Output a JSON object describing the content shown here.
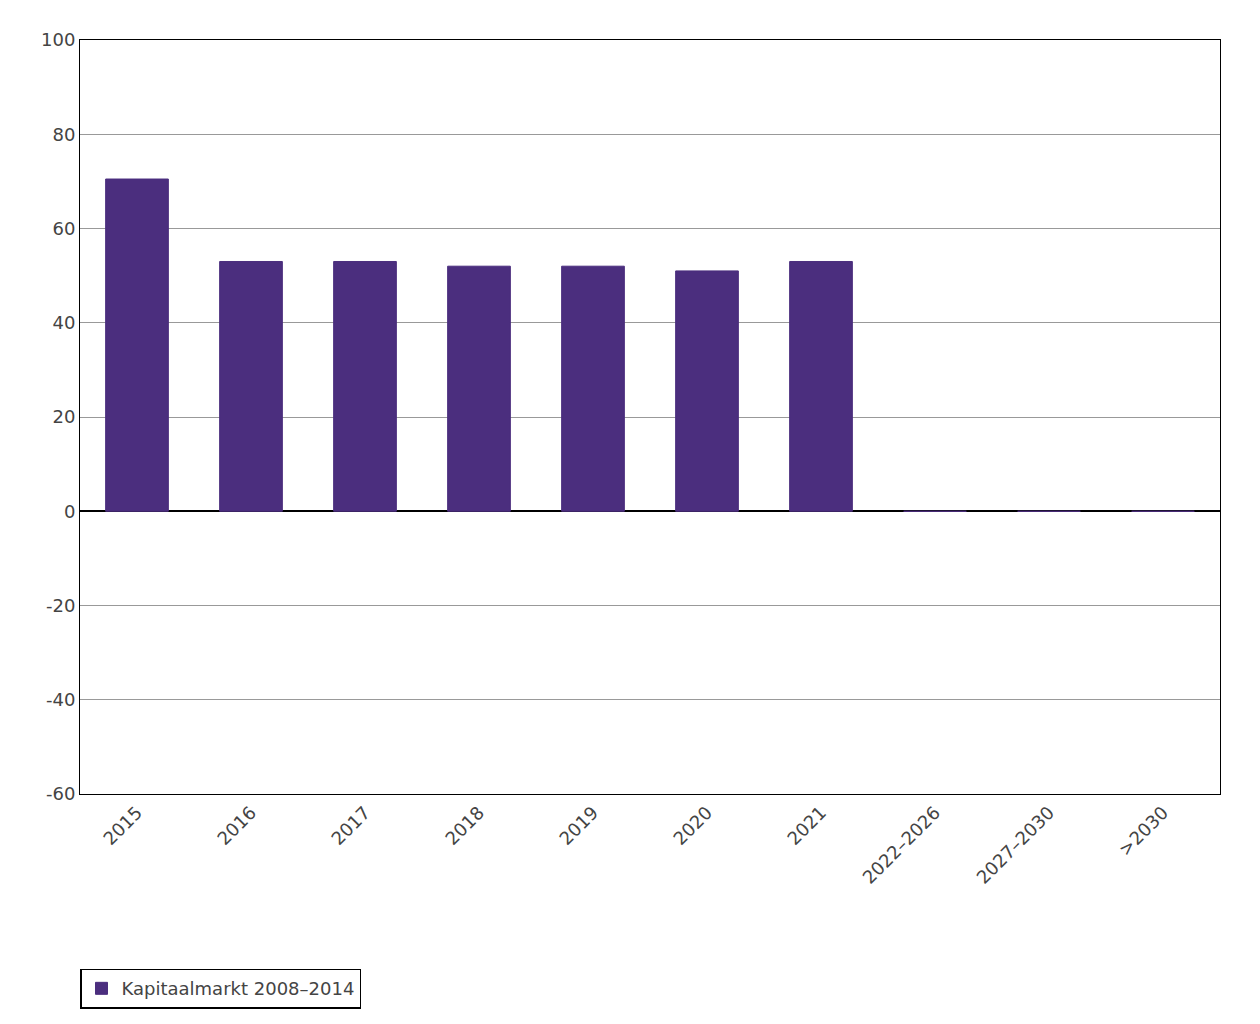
{
  "chart_data": {
    "type": "bar",
    "categories": [
      "2015",
      "2016",
      "2017",
      "2018",
      "2019",
      "2020",
      "2021",
      "2022–2026",
      "2027–2030",
      ">2030"
    ],
    "series": [
      {
        "name": "Kapitaalmarkt 2008–2014",
        "color": "#4B2E7E",
        "values": [
          70.5,
          53.0,
          53.0,
          52.0,
          52.0,
          51.0,
          53.0,
          0.0,
          0.0,
          0.0
        ]
      }
    ],
    "ylim": [
      -60,
      100
    ],
    "yticks": [
      -60,
      -40,
      -20,
      0,
      20,
      40,
      60,
      80,
      100
    ],
    "grid": true,
    "legend": "lower left"
  }
}
